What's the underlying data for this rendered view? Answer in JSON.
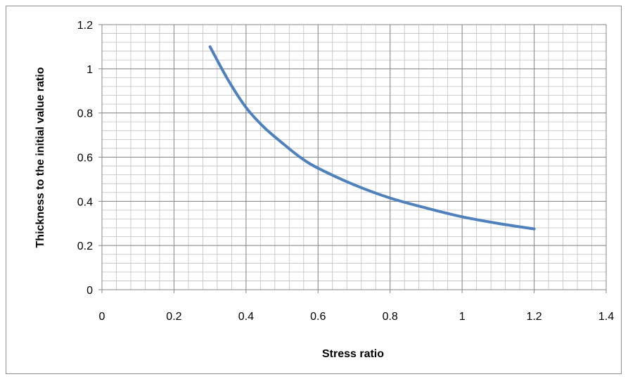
{
  "chart_data": {
    "type": "line",
    "xlabel": "Stress ratio",
    "ylabel": "Thickness to the initial value ratio",
    "xlim": [
      0,
      1.4
    ],
    "ylim": [
      0,
      1.2
    ],
    "x_ticks": [
      "0",
      "0.2",
      "0.4",
      "0.6",
      "0.8",
      "1",
      "1.2",
      "1.4"
    ],
    "y_ticks": [
      "0",
      "0.2",
      "0.4",
      "0.6",
      "0.8",
      "1",
      "1.2"
    ],
    "grid": true,
    "legend": "none",
    "series": [
      {
        "color": "#4f81bd",
        "x": [
          0.3,
          0.35,
          0.4,
          0.45,
          0.5,
          0.55,
          0.6,
          0.7,
          0.8,
          0.9,
          1.0,
          1.1,
          1.2
        ],
        "y": [
          1.1,
          0.95,
          0.825,
          0.735,
          0.665,
          0.6,
          0.55,
          0.475,
          0.415,
          0.37,
          0.33,
          0.3,
          0.275
        ]
      }
    ]
  }
}
